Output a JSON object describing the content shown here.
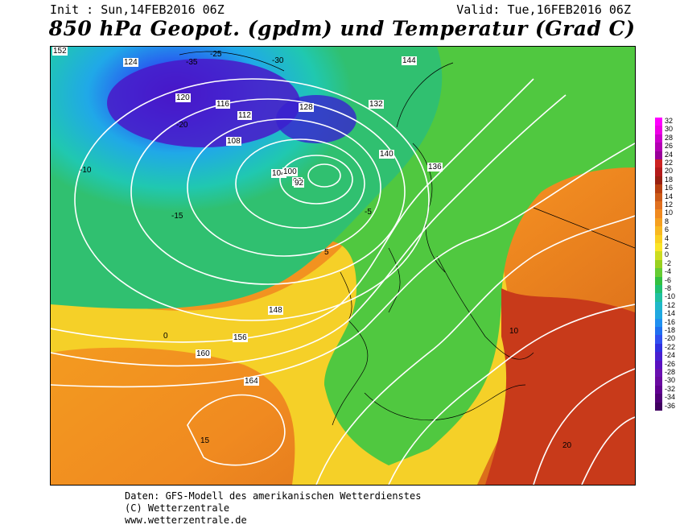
{
  "header": {
    "init": "Init : Sun,14FEB2016 06Z",
    "valid": "Valid: Tue,16FEB2016 06Z",
    "title": "850 hPa Geopot. (gpdm) und Temperatur (Grad C)"
  },
  "legend": {
    "labels": [
      "32",
      "30",
      "28",
      "26",
      "24",
      "22",
      "20",
      "18",
      "16",
      "14",
      "12",
      "10",
      "8",
      "6",
      "4",
      "2",
      "0",
      "-2",
      "-4",
      "-6",
      "-8",
      "-10",
      "-12",
      "-14",
      "-16",
      "-18",
      "-20",
      "-22",
      "-24",
      "-26",
      "-28",
      "-30",
      "-32",
      "-34",
      "-36"
    ],
    "colors": [
      "#ff00ff",
      "#ee00e6",
      "#cc00cc",
      "#b300b3",
      "#990099",
      "#cc2222",
      "#b31a1a",
      "#992010",
      "#b84010",
      "#cc5a18",
      "#e07020",
      "#f08a20",
      "#f5a020",
      "#f8b820",
      "#fad020",
      "#fae528",
      "#ccdc20",
      "#99d020",
      "#66cc33",
      "#33c040",
      "#20c070",
      "#20c0a0",
      "#20b8c8",
      "#20a8e0",
      "#2090f0",
      "#2070f0",
      "#3050f0",
      "#3030e0",
      "#4820d0",
      "#5a10c0",
      "#6a10b0",
      "#6a0aa0",
      "#600090",
      "#500078",
      "#400060"
    ]
  },
  "map_labels": {
    "geopotential": [
      "152",
      "124",
      "120",
      "116",
      "112",
      "108",
      "104",
      "100",
      "96",
      "92",
      "128",
      "132",
      "140",
      "144",
      "136",
      "148",
      "156",
      "160",
      "164"
    ],
    "temperature": [
      "-35",
      "-30",
      "-25",
      "-20",
      "-15",
      "-10",
      "-5",
      "0",
      "5",
      "10",
      "15",
      "20"
    ]
  },
  "footer": {
    "line1": "Daten: GFS-Modell des amerikanischen Wetterdienstes",
    "line2": "(C) Wetterzentrale",
    "line3": "www.wetterzentrale.de"
  }
}
